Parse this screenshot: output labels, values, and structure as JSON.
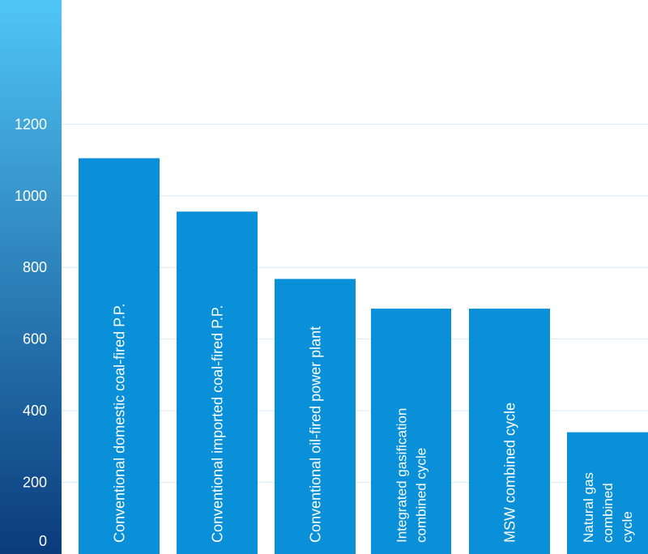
{
  "chart_data": {
    "type": "bar",
    "title": "",
    "xlabel": "",
    "ylabel": "",
    "ylim": [
      0,
      1400
    ],
    "yticks": [
      0,
      200,
      400,
      600,
      800,
      1000,
      1200
    ],
    "grid": true,
    "categories": [
      "Conventional domestic coal-fired P.P.",
      "Conventional imported coal-fired P.P.",
      "Conventional oil-fired power plant",
      "Integrated gasification combined cycle",
      "MSW combined cycle",
      "Natural gas combined cycle"
    ],
    "category_lines": [
      [
        "Conventional domestic coal-fired P.P."
      ],
      [
        "Conventional imported coal-fired P.P."
      ],
      [
        "Conventional oil-fired power plant"
      ],
      [
        "Integrated gasification",
        "combined cycle"
      ],
      [
        "MSW combined cycle"
      ],
      [
        "Natural gas",
        "combined",
        "cycle"
      ]
    ],
    "values": [
      1105,
      956,
      768,
      685,
      685,
      340
    ],
    "colors": {
      "bar": "#0a8fd9",
      "grid": "#d6ecf8",
      "axis_top": "#4fc6f6",
      "axis_bottom": "#0a3b7c",
      "label": "#ffffff"
    }
  }
}
